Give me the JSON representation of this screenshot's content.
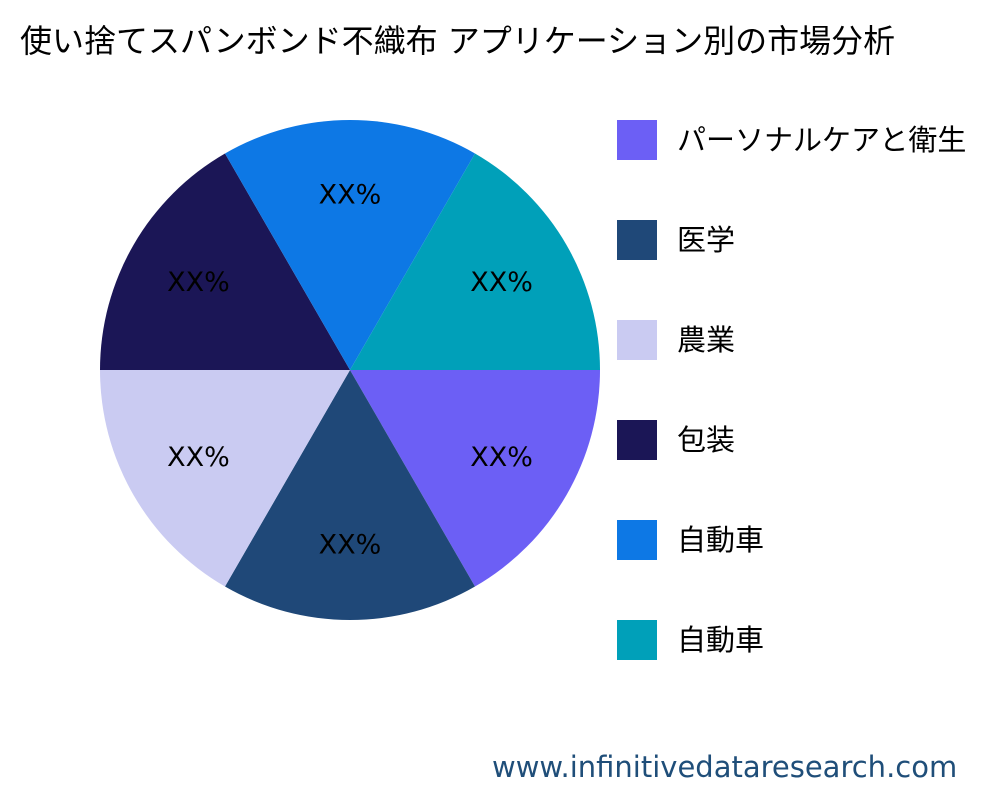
{
  "chart_data": {
    "type": "pie",
    "title": "使い捨てスパンボンド不織布 アプリケーション別の市場分析",
    "start_angle_deg": 0,
    "direction": "clockwise",
    "slices": [
      {
        "name": "パーソナルケアと衛生",
        "value": 16.67,
        "label": "XX%",
        "color": "#6c5ff5"
      },
      {
        "name": "医学",
        "value": 16.67,
        "label": "XX%",
        "color": "#1f4878"
      },
      {
        "name": "農業",
        "value": 16.67,
        "label": "XX%",
        "color": "#cacbf2"
      },
      {
        "name": "包装",
        "value": 16.67,
        "label": "XX%",
        "color": "#1b1656"
      },
      {
        "name": "自動車",
        "value": 16.67,
        "label": "XX%",
        "color": "#0d78e5"
      },
      {
        "name": "自動車",
        "value": 16.67,
        "label": "XX%",
        "color": "#00a0b9"
      }
    ],
    "legend_position": "right"
  },
  "watermark": "www.infinitivedataresearch.com"
}
